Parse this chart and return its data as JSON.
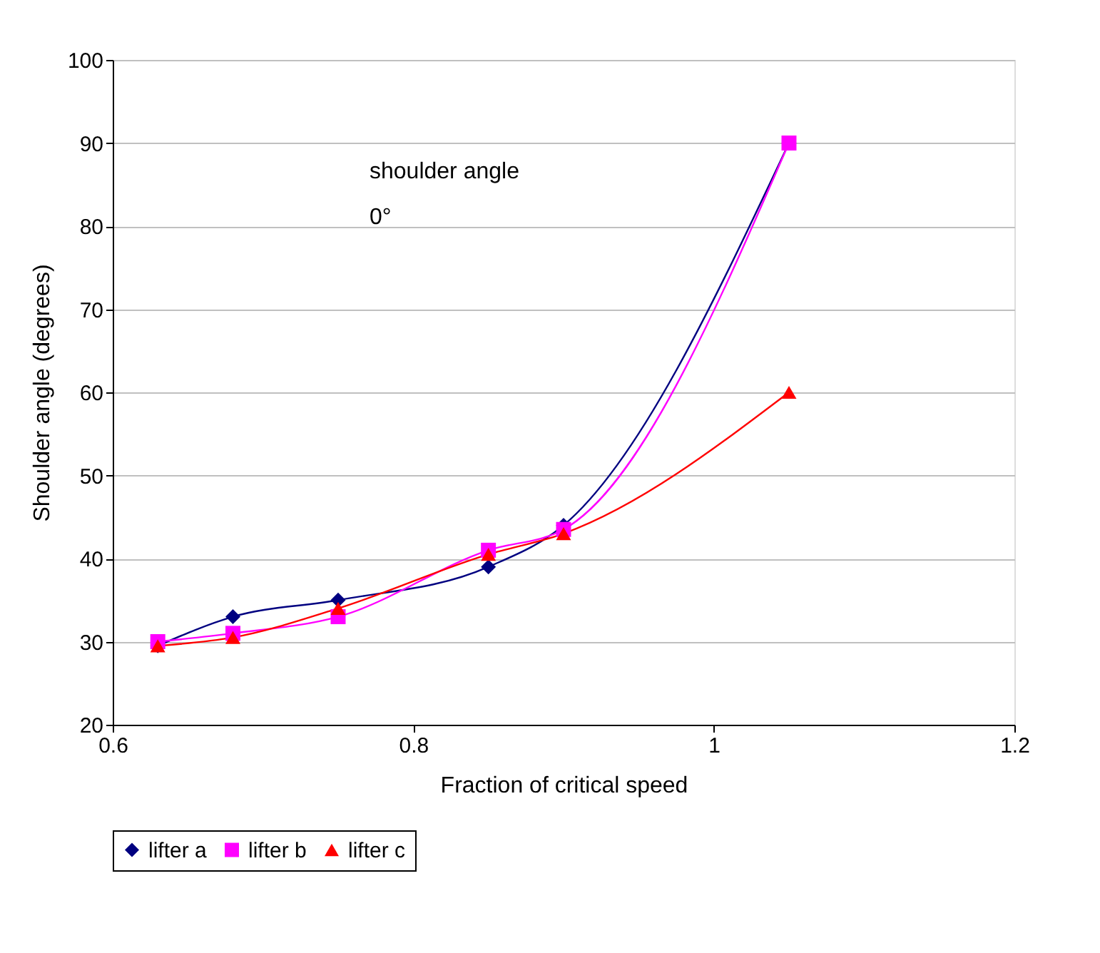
{
  "chart_data": {
    "type": "line",
    "xlabel": "Fraction of critical speed",
    "ylabel": "Shoulder angle (degrees)",
    "x": [
      0.63,
      0.68,
      0.75,
      0.85,
      0.9,
      1.05
    ],
    "series": [
      {
        "name": "lifter a",
        "color": "#000080",
        "marker": "diamond",
        "values": [
          29.5,
          33,
          35,
          39,
          44,
          90
        ]
      },
      {
        "name": "lifter b",
        "color": "#ff00ff",
        "marker": "square",
        "values": [
          30,
          31,
          33,
          41,
          43.5,
          90
        ]
      },
      {
        "name": "lifter c",
        "color": "#ff0000",
        "marker": "triangle",
        "values": [
          29.5,
          30.5,
          34,
          40.5,
          43,
          60
        ]
      }
    ],
    "xlim": [
      0.6,
      1.2
    ],
    "xticks": [
      0.6,
      0.8,
      1,
      1.2
    ],
    "ylim": [
      20,
      100
    ],
    "yticks": [
      20,
      30,
      40,
      50,
      60,
      70,
      80,
      90,
      100
    ],
    "grid": "y",
    "legend": "bottom",
    "line_style": "solid",
    "annotations": [
      "shoulder angle",
      "0°"
    ]
  }
}
